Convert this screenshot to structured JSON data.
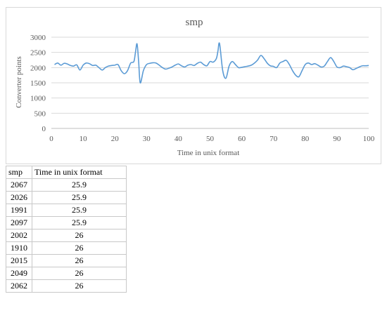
{
  "chart_data": {
    "type": "line",
    "title": "smp",
    "xlabel": "Time in unix format",
    "ylabel": "Converter points",
    "xlim": [
      0,
      100
    ],
    "ylim": [
      0,
      3000
    ],
    "x_ticks": [
      "0",
      "10",
      "20",
      "30",
      "40",
      "50",
      "60",
      "70",
      "80",
      "90",
      "100"
    ],
    "y_ticks": [
      "0",
      "500",
      "1000",
      "1500",
      "2000",
      "2500",
      "3000"
    ],
    "grid": "horizontal",
    "legend": "none",
    "line_color": "#5b9bd5",
    "series": [
      {
        "x": [
          1,
          2,
          3,
          4,
          5,
          6,
          7,
          8,
          9,
          10,
          11,
          12,
          13,
          14,
          15,
          16,
          17,
          18,
          19,
          20,
          21,
          22,
          23,
          24,
          25,
          26,
          26.5,
          27,
          27.5,
          28,
          29,
          30,
          31,
          32,
          33,
          34,
          35,
          36,
          37,
          38,
          39,
          40,
          41,
          42,
          43,
          44,
          45,
          46,
          47,
          48,
          49,
          50,
          51,
          52,
          52.5,
          53,
          54,
          55,
          56,
          57,
          58,
          59,
          60,
          61,
          62,
          63,
          64,
          65,
          66,
          67,
          68,
          69,
          70,
          71,
          72,
          73,
          74,
          75,
          76,
          77,
          78,
          79,
          80,
          81,
          82,
          83,
          84,
          85,
          86,
          87,
          88,
          89,
          90,
          91,
          92,
          93,
          94,
          95,
          96,
          97,
          98,
          99,
          100
        ],
        "y": [
          2100,
          2150,
          2080,
          2140,
          2120,
          2070,
          2050,
          2090,
          1920,
          2080,
          2150,
          2130,
          2070,
          2080,
          2000,
          1920,
          2000,
          2050,
          2070,
          2080,
          2100,
          1900,
          1800,
          1900,
          2150,
          2200,
          2500,
          2780,
          2200,
          1500,
          1900,
          2100,
          2140,
          2160,
          2150,
          2080,
          2000,
          1950,
          1980,
          2020,
          2080,
          2120,
          2060,
          2020,
          2080,
          2100,
          2070,
          2140,
          2180,
          2100,
          2060,
          2200,
          2180,
          2300,
          2550,
          2790,
          1900,
          1650,
          2050,
          2200,
          2100,
          2000,
          2010,
          2030,
          2050,
          2080,
          2150,
          2250,
          2400,
          2300,
          2150,
          2060,
          2040,
          2000,
          2150,
          2200,
          2240,
          2100,
          1900,
          1750,
          1700,
          1900,
          2100,
          2150,
          2100,
          2130,
          2080,
          2020,
          2050,
          2200,
          2330,
          2200,
          2020,
          2000,
          2050,
          2030,
          2000,
          1930,
          1970,
          2020,
          2060,
          2060,
          2070
        ]
      }
    ]
  },
  "table": {
    "headers": [
      "smp",
      "Time in unix format"
    ],
    "rows": [
      [
        "2067",
        "25.9"
      ],
      [
        "2026",
        "25.9"
      ],
      [
        "1991",
        "25.9"
      ],
      [
        "2097",
        "25.9"
      ],
      [
        "2002",
        "26"
      ],
      [
        "1910",
        "26"
      ],
      [
        "2015",
        "26"
      ],
      [
        "2049",
        "26"
      ],
      [
        "2062",
        "26"
      ]
    ]
  }
}
